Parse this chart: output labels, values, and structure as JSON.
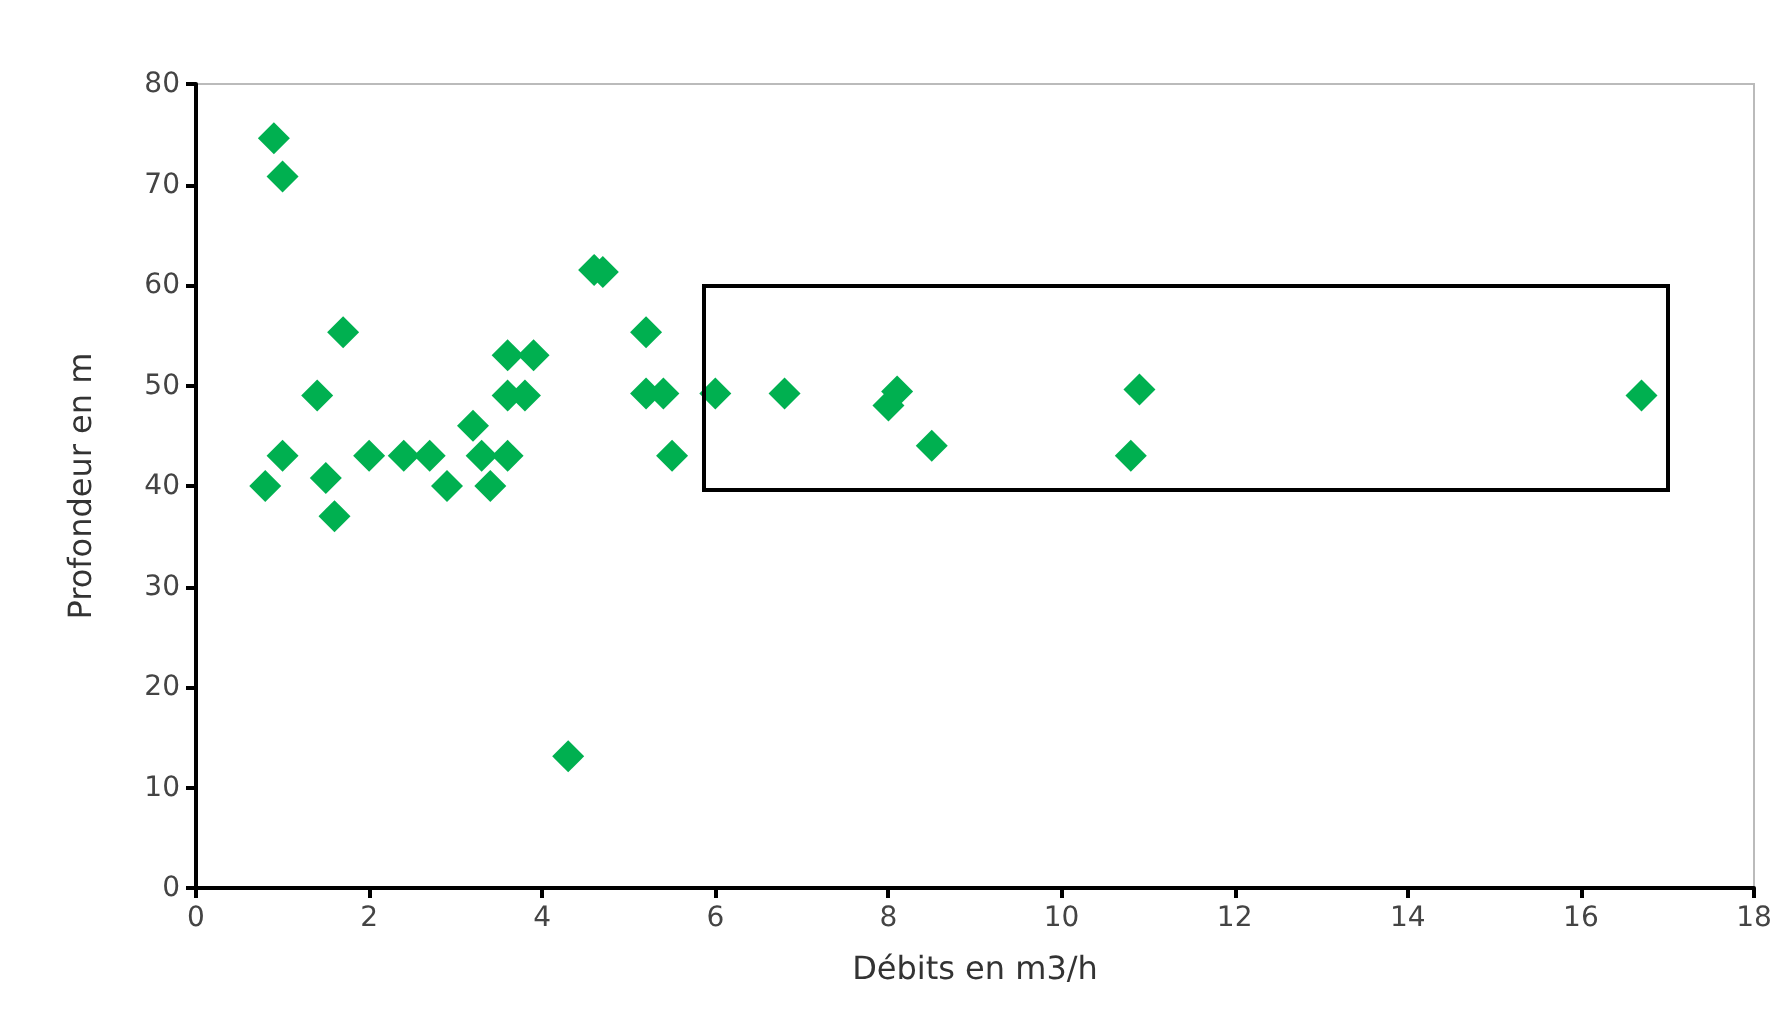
{
  "chart_data": {
    "type": "scatter",
    "xlabel": "Débits en m3/h",
    "ylabel": "Profondeur en m",
    "marker": "diamond",
    "xlim": [
      0,
      18
    ],
    "xticks": [
      0,
      2,
      4,
      6,
      8,
      10,
      12,
      14,
      16,
      18
    ],
    "ylim": [
      0,
      80
    ],
    "yticks": [
      0,
      10,
      20,
      30,
      40,
      50,
      60,
      70,
      80
    ],
    "series": [
      {
        "color": "#00b050",
        "x": [
          0.8,
          0.9,
          1.0,
          1.0,
          1.4,
          1.5,
          1.6,
          1.7,
          2.0,
          2.4,
          2.7,
          2.9,
          3.2,
          3.3,
          3.4,
          3.6,
          3.6,
          3.6,
          3.8,
          3.9,
          4.3,
          4.6,
          4.7,
          5.2,
          5.2,
          5.4,
          5.5,
          6.0,
          6.8,
          8.0,
          8.1,
          8.5,
          10.8,
          10.9,
          16.7
        ],
        "values": [
          40,
          74.6,
          70.8,
          43,
          49,
          40.8,
          37,
          55.3,
          43,
          43,
          43,
          40,
          46,
          43,
          40,
          43,
          53,
          49,
          49,
          53,
          13.1,
          61.5,
          61.3,
          55.3,
          49.2,
          49.2,
          43,
          49.2,
          49.2,
          48,
          49.4,
          44,
          43,
          49.6,
          49
        ]
      }
    ]
  }
}
